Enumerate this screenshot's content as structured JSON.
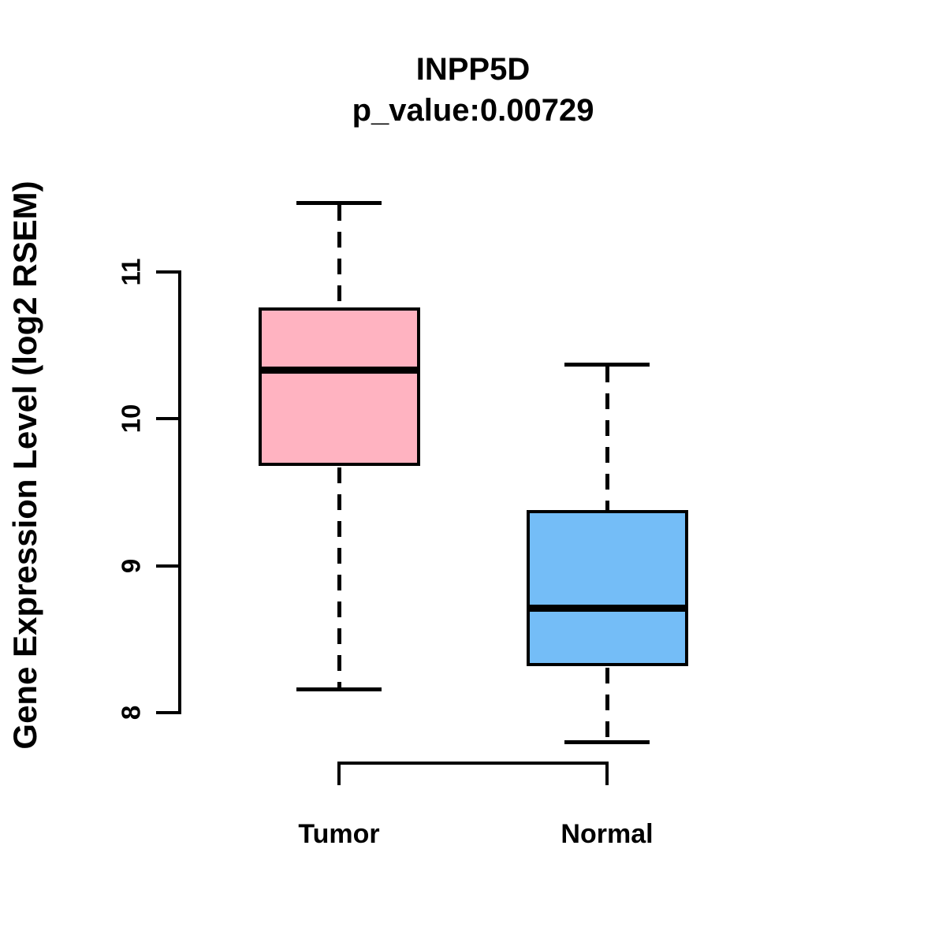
{
  "figure": {
    "background": "#ffffff"
  },
  "chart_data": {
    "type": "boxplot",
    "title": "INPP5D",
    "subtitle": "p_value:0.00729",
    "ylabel": "Gene Expression Level (log2 RSEM)",
    "xlabel": "",
    "yticks": [
      8,
      9,
      10,
      11
    ],
    "ylim": [
      7.6,
      11.6
    ],
    "grid": false,
    "legend": null,
    "categories": [
      "Tumor",
      "Normal"
    ],
    "groups": [
      {
        "label": "Tumor",
        "color": "#ffb3c1",
        "whisker_low": 8.16,
        "q1": 9.69,
        "median": 10.33,
        "q3": 10.75,
        "whisker_high": 11.47
      },
      {
        "label": "Normal",
        "color": "#74bdf7",
        "whisker_low": 7.8,
        "q1": 8.33,
        "median": 8.71,
        "q3": 9.37,
        "whisker_high": 10.37
      }
    ],
    "colors": {
      "box_border": "#000000",
      "median_line": "#000000",
      "axis": "#000000",
      "text": "#000000"
    }
  }
}
